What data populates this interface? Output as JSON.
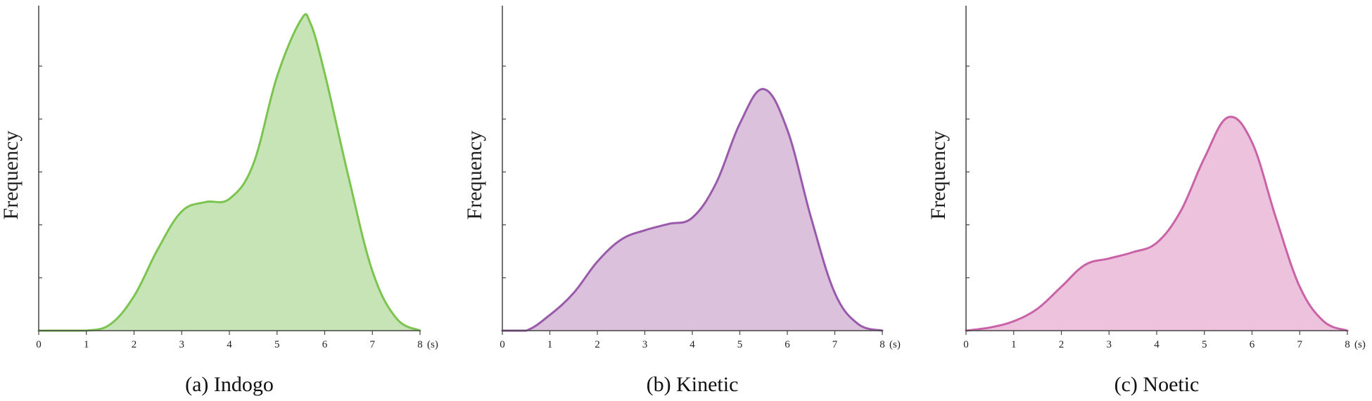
{
  "chart_data": [
    {
      "type": "area",
      "title": "(a) Indogo",
      "ylabel": "Frequency",
      "xunit": "(s)",
      "xlim": [
        0,
        8
      ],
      "ylim": [
        0,
        1
      ],
      "xticks": [
        0,
        1,
        2,
        3,
        4,
        5,
        6,
        7,
        8
      ],
      "stroke_color": "#7cc450",
      "fill_color": "#c6e4b6",
      "x": [
        0.0,
        0.5,
        1.0,
        1.5,
        2.0,
        2.5,
        3.0,
        3.5,
        4.0,
        4.5,
        5.0,
        5.5,
        5.7,
        6.0,
        6.5,
        7.0,
        7.5,
        8.0
      ],
      "y": [
        0.0,
        0.0,
        0.0,
        0.02,
        0.11,
        0.26,
        0.38,
        0.41,
        0.42,
        0.53,
        0.81,
        0.99,
        0.98,
        0.82,
        0.49,
        0.19,
        0.04,
        0.0
      ]
    },
    {
      "type": "area",
      "title": "(b) Kinetic",
      "ylabel": "Frequency",
      "xunit": "(s)",
      "xlim": [
        0,
        8
      ],
      "ylim": [
        0,
        1
      ],
      "xticks": [
        0,
        1,
        2,
        3,
        4,
        5,
        6,
        7,
        8
      ],
      "stroke_color": "#9a5aab",
      "fill_color": "#dcc1dd",
      "x": [
        0.0,
        0.5,
        1.0,
        1.5,
        2.0,
        2.5,
        3.0,
        3.5,
        4.0,
        4.5,
        5.0,
        5.5,
        6.0,
        6.5,
        7.0,
        7.5,
        8.0
      ],
      "y": [
        0.0,
        0.0,
        0.05,
        0.12,
        0.22,
        0.29,
        0.32,
        0.34,
        0.36,
        0.47,
        0.66,
        0.77,
        0.64,
        0.36,
        0.12,
        0.02,
        0.0
      ]
    },
    {
      "type": "area",
      "title": "(c) Noetic",
      "ylabel": "Frequency",
      "xunit": "(s)",
      "xlim": [
        0,
        8
      ],
      "ylim": [
        0,
        1
      ],
      "xticks": [
        0,
        1,
        2,
        3,
        4,
        5,
        6,
        7,
        8
      ],
      "stroke_color": "#c962a7",
      "fill_color": "#edc2dc",
      "x": [
        0.0,
        0.5,
        1.0,
        1.5,
        2.0,
        2.5,
        3.0,
        3.5,
        4.0,
        4.5,
        5.0,
        5.5,
        6.0,
        6.5,
        7.0,
        7.5,
        8.0
      ],
      "y": [
        0.0,
        0.01,
        0.03,
        0.07,
        0.14,
        0.21,
        0.23,
        0.25,
        0.28,
        0.38,
        0.55,
        0.68,
        0.6,
        0.36,
        0.14,
        0.03,
        0.0
      ]
    }
  ]
}
